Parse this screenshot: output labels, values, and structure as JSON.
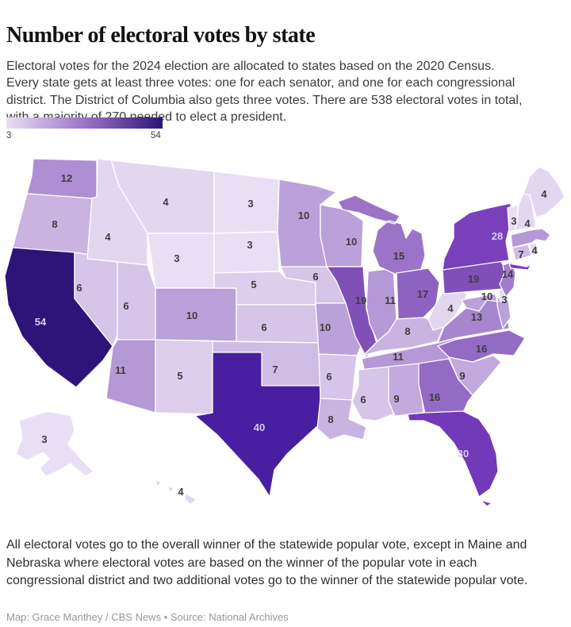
{
  "header": {
    "title": "Number of electoral votes by state",
    "description": "Electoral votes for the 2024 election are allocated to states based on the 2020 Census. Every state gets at least three votes: one for each senator, and one for each congressional district. The District of Columbia also gets three votes. There are 538 electoral votes in total, with a majority of 270 needed to elect a president."
  },
  "legend": {
    "min_label": "3",
    "max_label": "54",
    "gradient_start": "#E9DFF4",
    "gradient_mid": "#9B74C8",
    "gradient_end": "#2E1478"
  },
  "scale_colors": {
    "3": "#E9DFF4",
    "4": "#E3D7F0",
    "5": "#DCCEEC",
    "6": "#D6C5E9",
    "7": "#CFBCE5",
    "8": "#C9B3E1",
    "9": "#C2AADE",
    "10": "#BBA1DA",
    "11": "#B598D6",
    "12": "#AE8FD3",
    "13": "#A886CF",
    "14": "#A17DCB",
    "15": "#9B74C8",
    "16": "#946BC4",
    "17": "#8D62C0",
    "19": "#8050B9",
    "28": "#7A40BC",
    "30": "#7239B8",
    "40": "#471FA0",
    "54": "#2E1478"
  },
  "label_colors": {
    "dark": "#3D3D3D",
    "light": "#D9CDF2"
  },
  "light_label_threshold": 28,
  "map": {
    "states": [
      {
        "id": "WA",
        "name": "Washington",
        "votes": 12
      },
      {
        "id": "OR",
        "name": "Oregon",
        "votes": 8
      },
      {
        "id": "CA",
        "name": "California",
        "votes": 54
      },
      {
        "id": "NV",
        "name": "Nevada",
        "votes": 6
      },
      {
        "id": "ID",
        "name": "Idaho",
        "votes": 4
      },
      {
        "id": "MT",
        "name": "Montana",
        "votes": 4
      },
      {
        "id": "WY",
        "name": "Wyoming",
        "votes": 3
      },
      {
        "id": "UT",
        "name": "Utah",
        "votes": 6
      },
      {
        "id": "CO",
        "name": "Colorado",
        "votes": 10
      },
      {
        "id": "AZ",
        "name": "Arizona",
        "votes": 11
      },
      {
        "id": "NM",
        "name": "New Mexico",
        "votes": 5
      },
      {
        "id": "ND",
        "name": "North Dakota",
        "votes": 3
      },
      {
        "id": "SD",
        "name": "South Dakota",
        "votes": 3
      },
      {
        "id": "NE",
        "name": "Nebraska",
        "votes": 5
      },
      {
        "id": "KS",
        "name": "Kansas",
        "votes": 6
      },
      {
        "id": "OK",
        "name": "Oklahoma",
        "votes": 7
      },
      {
        "id": "TX",
        "name": "Texas",
        "votes": 40
      },
      {
        "id": "MN",
        "name": "Minnesota",
        "votes": 10
      },
      {
        "id": "IA",
        "name": "Iowa",
        "votes": 6
      },
      {
        "id": "MO",
        "name": "Missouri",
        "votes": 10
      },
      {
        "id": "AR",
        "name": "Arkansas",
        "votes": 6
      },
      {
        "id": "LA",
        "name": "Louisiana",
        "votes": 8
      },
      {
        "id": "WI",
        "name": "Wisconsin",
        "votes": 10
      },
      {
        "id": "IL",
        "name": "Illinois",
        "votes": 19
      },
      {
        "id": "IN",
        "name": "Indiana",
        "votes": 11
      },
      {
        "id": "MI",
        "name": "Michigan",
        "votes": 15
      },
      {
        "id": "OH",
        "name": "Ohio",
        "votes": 17
      },
      {
        "id": "KY",
        "name": "Kentucky",
        "votes": 8
      },
      {
        "id": "TN",
        "name": "Tennessee",
        "votes": 11
      },
      {
        "id": "MS",
        "name": "Mississippi",
        "votes": 6
      },
      {
        "id": "AL",
        "name": "Alabama",
        "votes": 9
      },
      {
        "id": "GA",
        "name": "Georgia",
        "votes": 16
      },
      {
        "id": "FL",
        "name": "Florida",
        "votes": 30
      },
      {
        "id": "SC",
        "name": "South Carolina",
        "votes": 9
      },
      {
        "id": "NC",
        "name": "North Carolina",
        "votes": 16
      },
      {
        "id": "VA",
        "name": "Virginia",
        "votes": 13
      },
      {
        "id": "WV",
        "name": "West Virginia",
        "votes": 4
      },
      {
        "id": "MD",
        "name": "Maryland",
        "votes": 10
      },
      {
        "id": "DE",
        "name": "Delaware",
        "votes": 3
      },
      {
        "id": "PA",
        "name": "Pennsylvania",
        "votes": 19
      },
      {
        "id": "NJ",
        "name": "New Jersey",
        "votes": 14
      },
      {
        "id": "NY",
        "name": "New York",
        "votes": 28
      },
      {
        "id": "CT",
        "name": "Connecticut",
        "votes": 7
      },
      {
        "id": "RI",
        "name": "Rhode Island",
        "votes": 4
      },
      {
        "id": "MA",
        "name": "Massachusetts",
        "votes": null,
        "fill": "#B598D6"
      },
      {
        "id": "VT",
        "name": "Vermont",
        "votes": 3
      },
      {
        "id": "NH",
        "name": "New Hampshire",
        "votes": 4
      },
      {
        "id": "ME",
        "name": "Maine",
        "votes": 4
      },
      {
        "id": "AK",
        "name": "Alaska",
        "votes": 3
      },
      {
        "id": "HI",
        "name": "Hawaii",
        "votes": 4
      }
    ]
  },
  "footnote": "All electoral votes go to the overall winner of the statewide popular vote, except in Maine and Nebraska where electoral votes are based on the winner of the popular vote in each congressional district and two additional votes go to the winner of the statewide popular vote.",
  "credit": "Map: Grace Manthey / CBS News • Source: National Archives"
}
